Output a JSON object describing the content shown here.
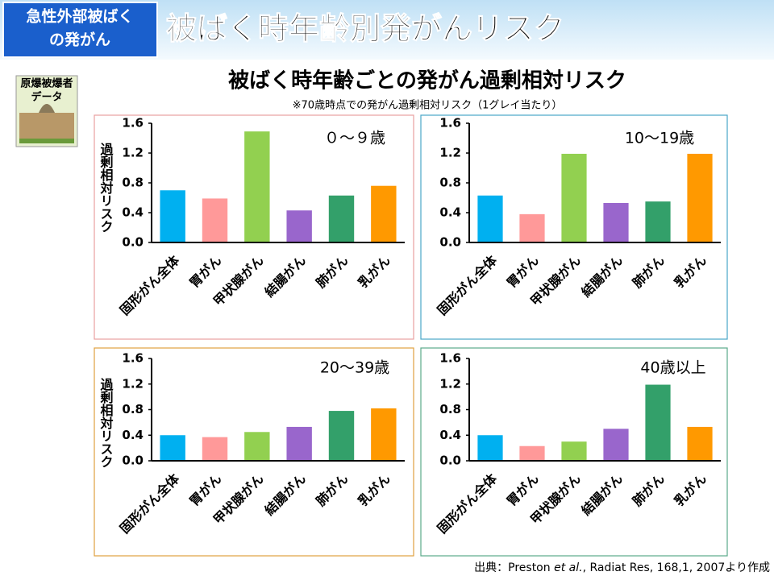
{
  "header": {
    "badge_lines": [
      "急性外部被ばく",
      "の発がん"
    ],
    "title": "被ばく時年齢別発がんリスク"
  },
  "side_badge": {
    "lines": [
      "原爆被爆者",
      "データ"
    ]
  },
  "subtitle": "被ばく時年齢ごとの発がん過剰相対リスク",
  "note": "※70歳時点での発がん過剰相対リスク（1グレイ当たり）",
  "source": {
    "prefix": "出典：Preston ",
    "italic": "et al.",
    "suffix": ", Radiat Res, 168,1, 2007より作成"
  },
  "chart_data": [
    {
      "type": "bar",
      "title": "０～９歳",
      "ylabel": "過剰相対リスク",
      "border_color": "#e8a0a0",
      "categories": [
        "固形がん全体",
        "胃がん",
        "甲状腺がん",
        "結腸がん",
        "肺がん",
        "乳がん"
      ],
      "values": [
        0.7,
        0.59,
        1.49,
        0.43,
        0.63,
        0.76
      ],
      "colors": [
        "#00b0f0",
        "#ff9999",
        "#92d050",
        "#9966cc",
        "#33a06a",
        "#ff9900"
      ],
      "ylim": [
        0,
        1.6
      ],
      "yticks": [
        {
          "value": 0,
          "label": "0.0"
        },
        0.4,
        0.8,
        1.2,
        1.6
      ]
    },
    {
      "type": "bar",
      "title": "10～19歳",
      "border_color": "#4aa6c8",
      "categories": [
        "固形がん全体",
        "胃がん",
        "甲状腺がん",
        "結腸がん",
        "肺がん",
        "乳がん"
      ],
      "values": [
        0.63,
        0.38,
        1.19,
        0.53,
        0.55,
        1.19
      ],
      "colors": [
        "#00b0f0",
        "#ff9999",
        "#92d050",
        "#9966cc",
        "#33a06a",
        "#ff9900"
      ],
      "ylim": [
        0,
        1.6
      ],
      "yticks": [
        {
          "value": 0,
          "label": "0.0"
        },
        0.4,
        0.8,
        1.2,
        1.6
      ]
    },
    {
      "type": "bar",
      "title": "20～39歳",
      "ylabel": "過剰相対リスク",
      "border_color": "#e0a040",
      "categories": [
        "固形がん全体",
        "胃がん",
        "甲状腺がん",
        "結腸がん",
        "肺がん",
        "乳がん"
      ],
      "values": [
        0.4,
        0.37,
        0.45,
        0.53,
        0.78,
        0.82
      ],
      "colors": [
        "#00b0f0",
        "#ff9999",
        "#92d050",
        "#9966cc",
        "#33a06a",
        "#ff9900"
      ],
      "ylim": [
        0,
        1.6
      ],
      "yticks": [
        {
          "value": 0,
          "label": "0.0"
        },
        0.4,
        0.8,
        1.2,
        1.6
      ]
    },
    {
      "type": "bar",
      "title": "40歳以上",
      "border_color": "#5aaa8a",
      "categories": [
        "固形がん全体",
        "胃がん",
        "甲状腺がん",
        "結腸がん",
        "肺がん",
        "乳がん"
      ],
      "values": [
        0.4,
        0.23,
        0.3,
        0.5,
        1.19,
        0.53
      ],
      "colors": [
        "#00b0f0",
        "#ff9999",
        "#92d050",
        "#9966cc",
        "#33a06a",
        "#ff9900"
      ],
      "ylim": [
        0,
        1.6
      ],
      "yticks": [
        {
          "value": 0,
          "label": "0.0"
        },
        0.4,
        0.8,
        1.2,
        1.6
      ]
    }
  ]
}
